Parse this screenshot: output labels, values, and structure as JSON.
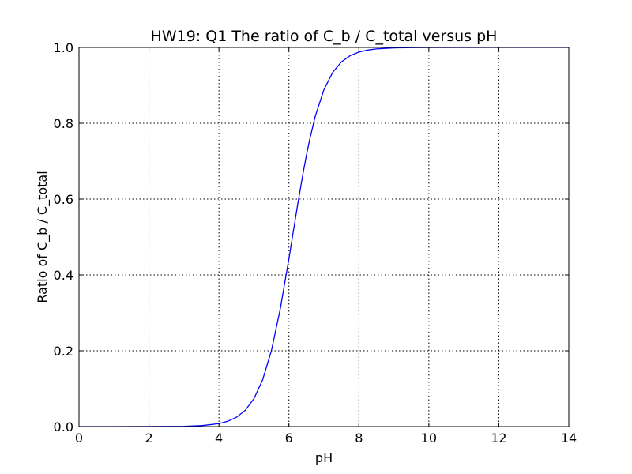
{
  "chart_data": {
    "type": "line",
    "title": "HW19: Q1 The ratio of C_b / C_total versus pH",
    "xlabel": "pH",
    "ylabel": "Ratio of C_b / C_total",
    "xlim": [
      0,
      14
    ],
    "ylim": [
      0,
      1
    ],
    "xticks": [
      0,
      2,
      4,
      6,
      8,
      10,
      12,
      14
    ],
    "yticks": [
      0,
      0.2,
      0.4,
      0.6,
      0.8,
      1
    ],
    "xtick_labels": [
      "0",
      "2",
      "4",
      "6",
      "8",
      "10",
      "12",
      "14"
    ],
    "ytick_labels": [
      "0.0",
      "0.2",
      "0.4",
      "0.6",
      "0.8",
      "1.0"
    ],
    "grid": true,
    "series": [
      {
        "color": "#0000ff",
        "x": [
          0,
          1,
          2,
          3,
          3.5,
          4,
          4.25,
          4.5,
          4.75,
          5,
          5.25,
          5.5,
          5.75,
          6,
          6.1,
          6.25,
          6.4,
          6.5,
          6.6,
          6.75,
          7,
          7.25,
          7.5,
          7.75,
          8,
          8.25,
          8.5,
          9,
          9.5,
          10,
          12,
          14
        ],
        "y": [
          0,
          0,
          0.0001,
          0.0008,
          0.0025,
          0.0079,
          0.014,
          0.0245,
          0.0428,
          0.0736,
          0.1237,
          0.2005,
          0.3089,
          0.4427,
          0.4999,
          0.5856,
          0.6662,
          0.7153,
          0.7597,
          0.8175,
          0.8883,
          0.9339,
          0.9617,
          0.9783,
          0.9877,
          0.9931,
          0.9961,
          0.9988,
          0.9996,
          0.9999,
          1,
          1
        ]
      }
    ]
  }
}
